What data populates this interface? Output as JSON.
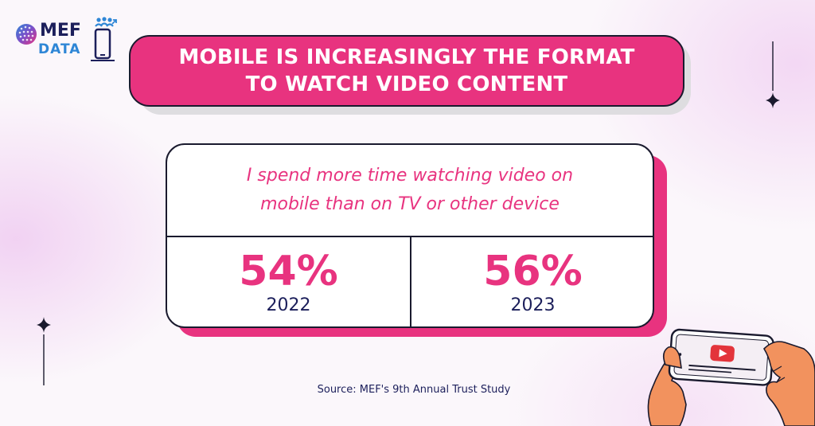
{
  "logo": {
    "brand_top": "MEF",
    "brand_bottom": "DATA",
    "icon": "mef-data-logo"
  },
  "title": {
    "line1": "MOBILE IS INCREASINGLY THE FORMAT",
    "line2": "TO WATCH VIDEO CONTENT"
  },
  "card": {
    "statement_line1": "I spend more time watching video on",
    "statement_line2": "mobile than on TV or other device",
    "stats": [
      {
        "value": "54%",
        "year": "2022"
      },
      {
        "value": "56%",
        "year": "2023"
      }
    ]
  },
  "source": "Source: MEF's 9th Annual Trust Study",
  "colors": {
    "accent_pink": "#e8337f",
    "navy": "#1c1f5b",
    "outline": "#1a1a2e",
    "logo_blue": "#2e86d6"
  },
  "decorations": {
    "sparkles": [
      "sparkle-icon",
      "sparkle-icon"
    ],
    "illustration": "hands-holding-phone-with-video-play-icon"
  }
}
